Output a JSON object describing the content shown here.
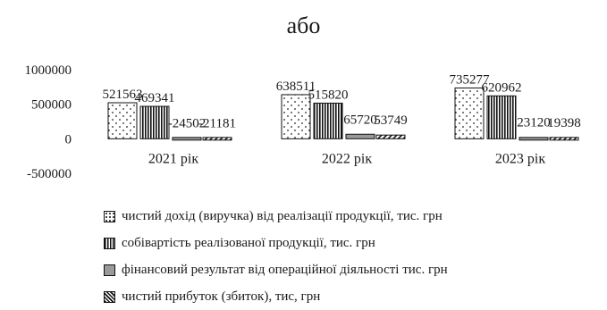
{
  "heading": "або",
  "chart_data": {
    "type": "bar",
    "categories": [
      "2021 рік",
      "2022 рік",
      "2023 рік"
    ],
    "series": [
      {
        "name": "чистий дохід (виручка) від реалізації продукції, тис. грн",
        "values": [
          521563,
          638511,
          735277
        ],
        "labels": [
          "521563",
          "638511",
          "735277"
        ],
        "pattern": "dots"
      },
      {
        "name": "собівартість реалізованої продукції, тис. грн",
        "values": [
          469341,
          515820,
          620962
        ],
        "labels": [
          "469341",
          "515820",
          "620962"
        ],
        "pattern": "vlines"
      },
      {
        "name": "фінансовий результат від операційної діяльності тис. грн",
        "values": [
          -24502,
          65720,
          23120
        ],
        "labels": [
          "-24502",
          "65720",
          "23120"
        ],
        "pattern": "gray"
      },
      {
        "name": "чистий прибуток (збиток), тис, грн",
        "values": [
          -21181,
          53749,
          19398
        ],
        "labels": [
          "-21181",
          "53749",
          "19398"
        ],
        "pattern": "diag"
      }
    ],
    "yticks": [
      1000000,
      500000,
      0,
      -500000
    ],
    "ytick_labels": [
      "1000000",
      "500000",
      "0",
      "-500000"
    ],
    "ylim": [
      -500000,
      1000000
    ],
    "grid": false,
    "legend_position": "bottom"
  }
}
